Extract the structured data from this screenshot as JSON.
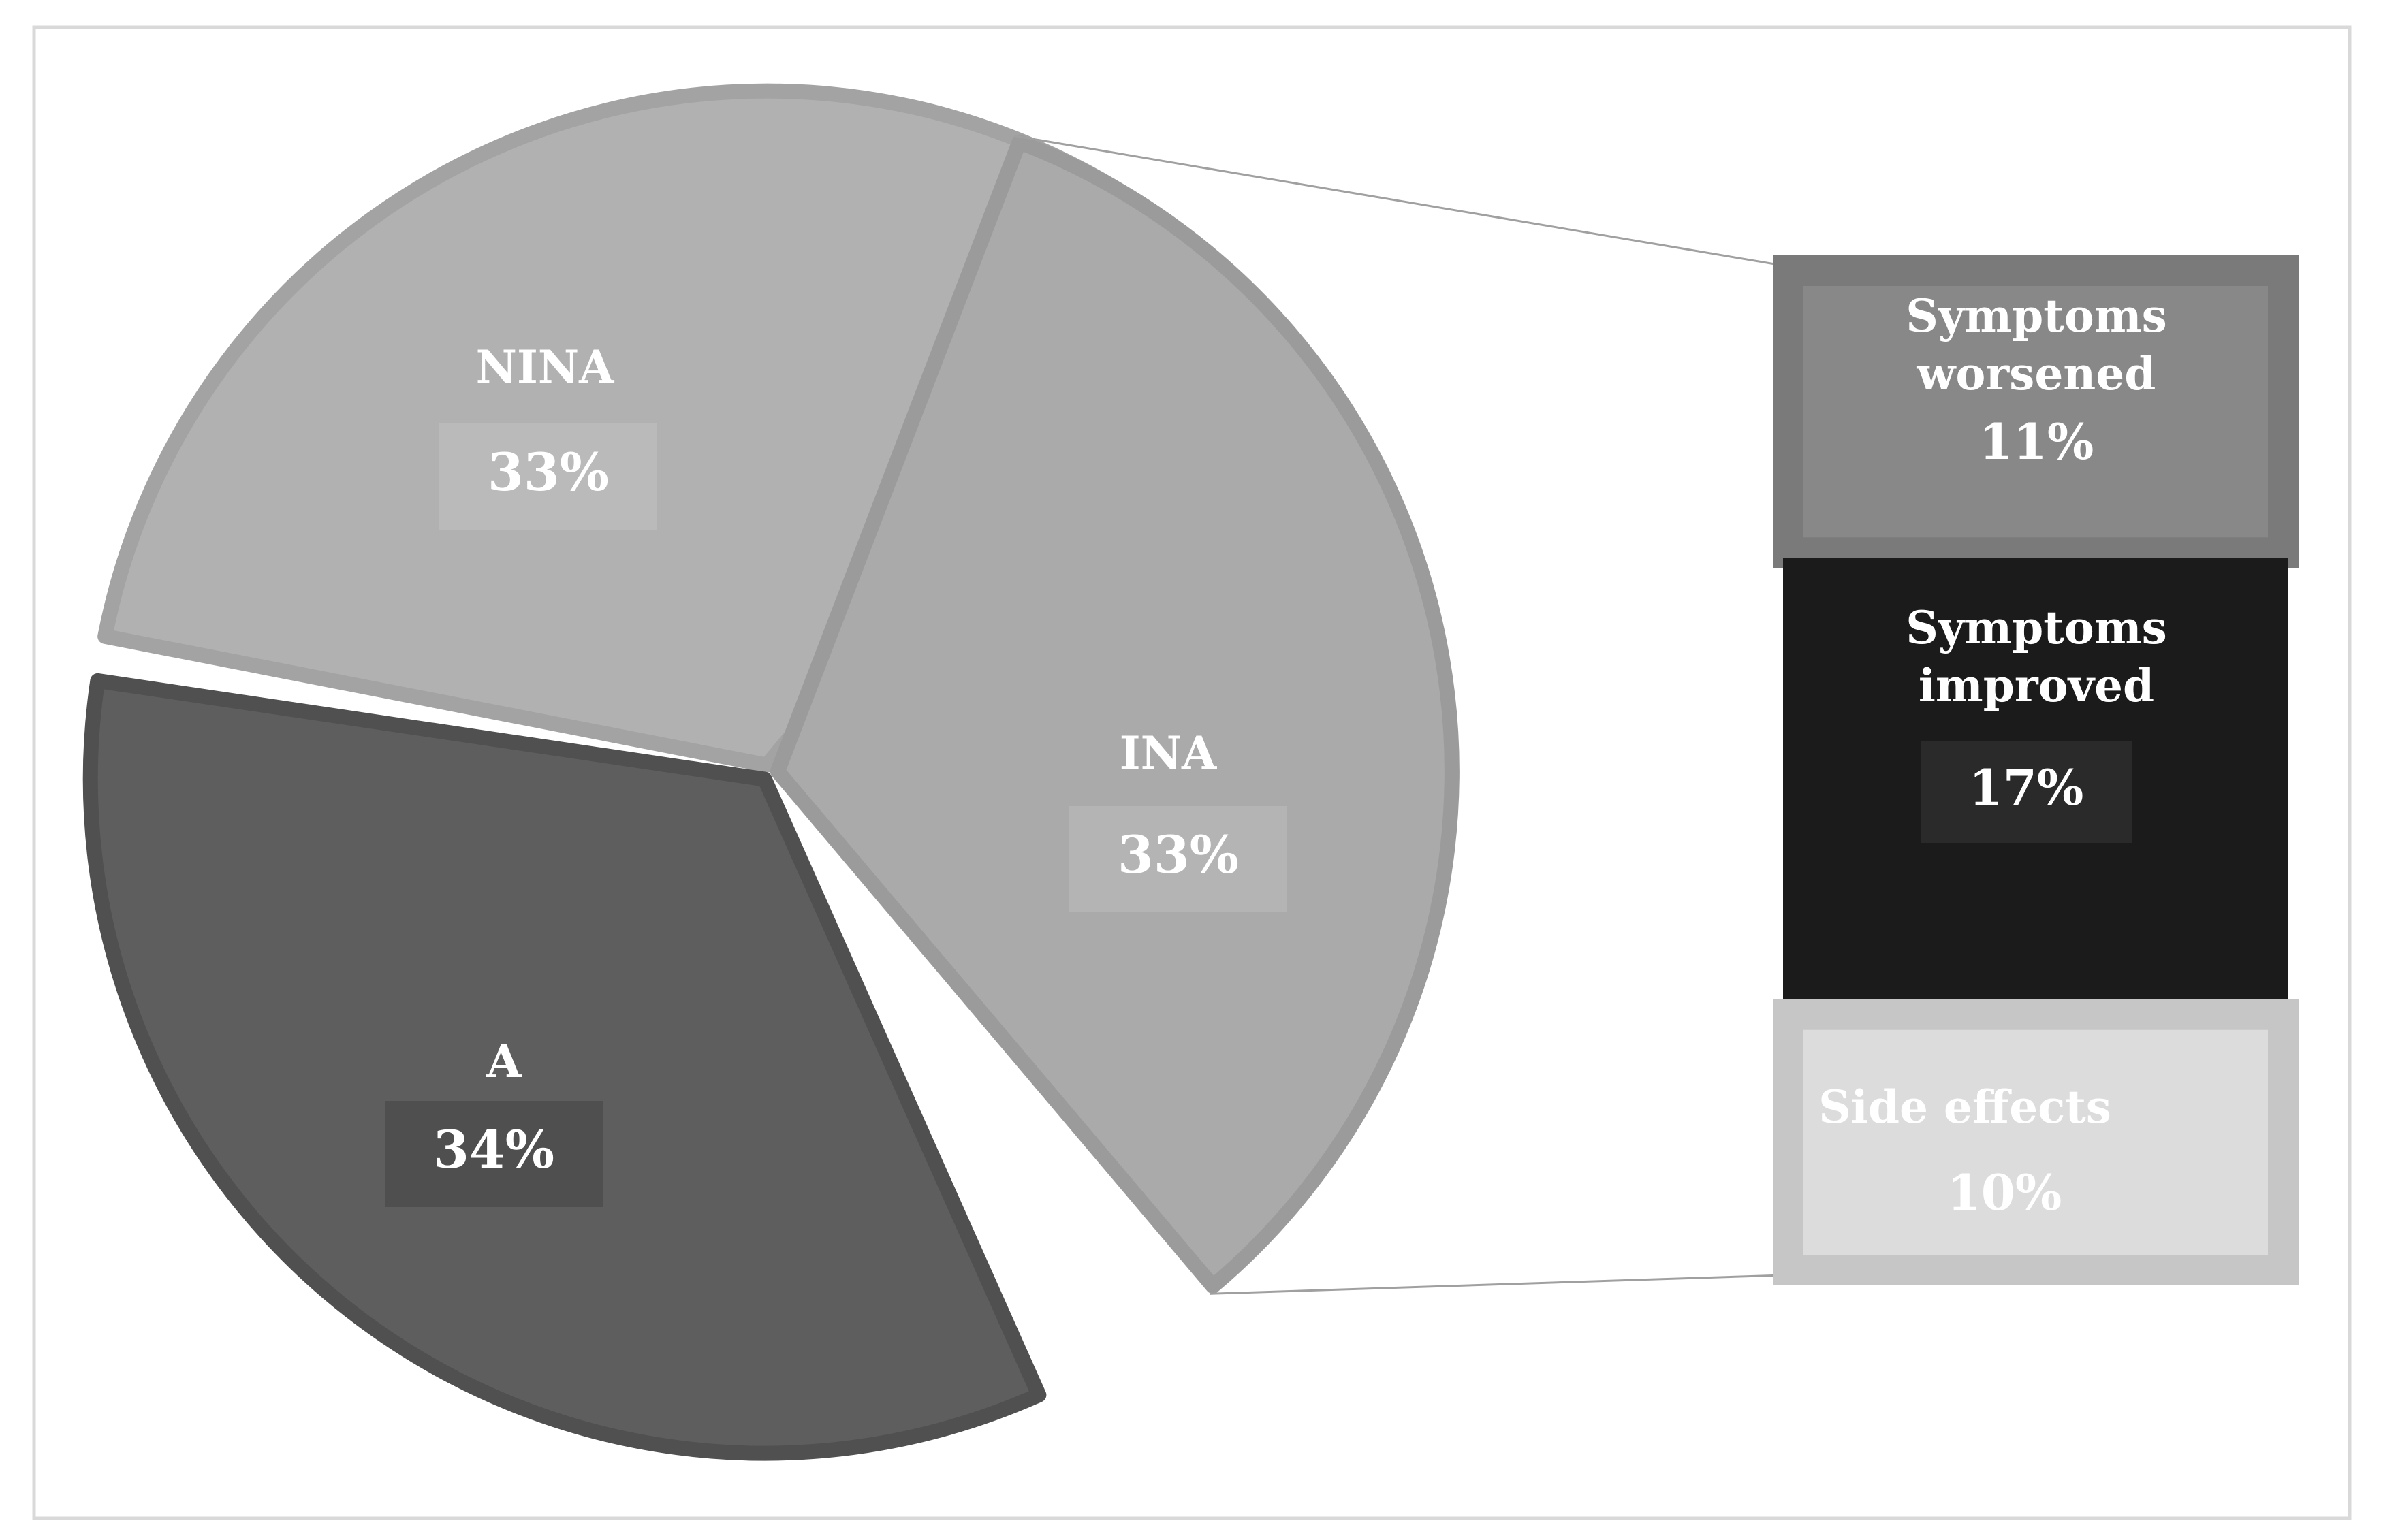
{
  "chart_data": {
    "type": "pie",
    "variant": "bar-of-pie",
    "title": "",
    "pie": {
      "slices": [
        {
          "label": "NINA",
          "value": 33,
          "value_label": "33%",
          "color": "#b1b1b1",
          "edge": "#a3a3a3",
          "box": "#bababa"
        },
        {
          "label": "INA",
          "value": 33,
          "value_label": "33%",
          "color": "#aaaaaa",
          "edge": "#9b9b9b",
          "box": "#b4b4b4"
        },
        {
          "label": "A",
          "value": 34,
          "value_label": "34%",
          "color": "#5e5e5e",
          "edge": "#505050",
          "box": "#4f4f4f"
        }
      ]
    },
    "bar": {
      "breakdown_of": "INA",
      "segments": [
        {
          "label_lines": [
            "Symptoms",
            "worsened"
          ],
          "value": 11,
          "value_label": "11%",
          "color": "#888888",
          "edge": "#7a7a7a"
        },
        {
          "label_lines": [
            "Symptoms",
            "improved"
          ],
          "value": 17,
          "value_label": "17%",
          "color": "#1b1b1b",
          "edge": "#1b1b1b",
          "box": "#2a2a2a"
        },
        {
          "label_lines": [
            "Side effects"
          ],
          "value": 10,
          "value_label": "10%",
          "color": "#dcdcdc",
          "edge": "#c6c6c6"
        }
      ]
    },
    "colors": {
      "frame": "#d9d9d9",
      "connector": "#a0a0a0",
      "label_text": "#ffffff"
    }
  }
}
